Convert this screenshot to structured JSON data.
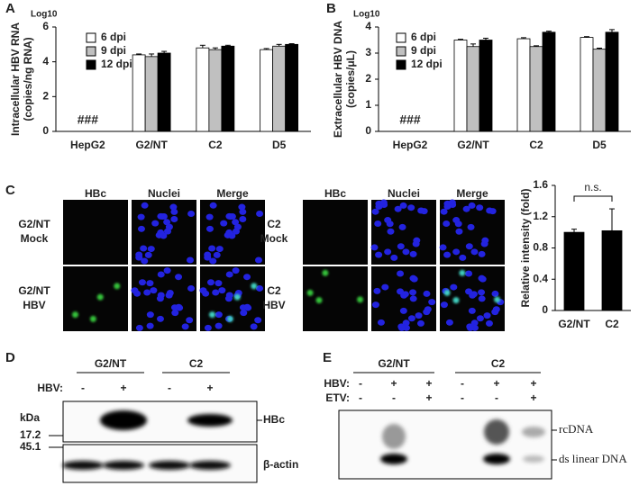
{
  "panel_labels": [
    "A",
    "B",
    "C",
    "D",
    "E"
  ],
  "chart_data": [
    {
      "type": "bar",
      "axis_note": "Log10",
      "y_label": [
        "Intracellular HBV RNA",
        "(copies/ng RNA)"
      ],
      "categories": [
        "HepG2",
        "G2/NT",
        "C2",
        "D5"
      ],
      "series": [
        {
          "name": "6 dpi",
          "color": "#ffffff",
          "values": [
            null,
            4.4,
            4.8,
            4.7
          ],
          "errors": [
            null,
            0.05,
            0.15,
            0.06
          ]
        },
        {
          "name": "9 dpi",
          "color": "#c0c0c0",
          "values": [
            null,
            4.3,
            4.7,
            4.9
          ],
          "errors": [
            null,
            0.15,
            0.1,
            0.1
          ]
        },
        {
          "name": "12 dpi",
          "color": "#000000",
          "values": [
            null,
            4.5,
            4.9,
            5.0
          ],
          "errors": [
            null,
            0.1,
            0.05,
            0.04
          ]
        }
      ],
      "annotation": "###",
      "legend": "upper left",
      "ylim": [
        0,
        6
      ],
      "yticks": [
        0,
        2,
        4,
        6
      ]
    },
    {
      "type": "bar",
      "axis_note": "Log10",
      "y_label": [
        "Extracellular HBV DNA",
        "(copies/μL)"
      ],
      "categories": [
        "HepG2",
        "G2/NT",
        "C2",
        "D5"
      ],
      "series": [
        {
          "name": "6 dpi",
          "color": "#ffffff",
          "values": [
            null,
            3.5,
            3.55,
            3.6
          ],
          "errors": [
            null,
            0.03,
            0.04,
            0.03
          ]
        },
        {
          "name": "9 dpi",
          "color": "#c0c0c0",
          "values": [
            null,
            3.25,
            3.25,
            3.15
          ],
          "errors": [
            null,
            0.1,
            0.03,
            0.04
          ]
        },
        {
          "name": "12 dpi",
          "color": "#000000",
          "values": [
            null,
            3.5,
            3.8,
            3.8
          ],
          "errors": [
            null,
            0.07,
            0.04,
            0.1
          ]
        }
      ],
      "annotation": "###",
      "legend": "upper left",
      "ylim": [
        0,
        4
      ],
      "yticks": [
        0,
        1,
        2,
        3,
        4
      ]
    },
    {
      "type": "bar",
      "y_label": [
        "Relative intensity (fold)"
      ],
      "categories": [
        "G2/NT",
        "C2"
      ],
      "series": [
        {
          "color": "#000000",
          "values": [
            1,
            1.02
          ],
          "errors": [
            0.04,
            0.28
          ]
        }
      ],
      "annotation": "n.s.",
      "bracket": true,
      "ylim": [
        0,
        1.6
      ],
      "yticks": [
        0,
        0.4,
        0.8,
        1.2,
        1.6
      ]
    }
  ],
  "microscopy": [
    {
      "columns": [
        "HBc",
        "Nuclei",
        "Merge"
      ],
      "rows": [
        [
          "G2/NT",
          "Mock"
        ],
        [
          "G2/NT",
          "HBV"
        ]
      ]
    },
    {
      "columns": [
        "HBc",
        "Nuclei",
        "Merge"
      ],
      "rows": [
        [
          "C2",
          "Mock"
        ],
        [
          "C2",
          "HBV"
        ]
      ]
    }
  ],
  "western_blot": {
    "groups": [
      "G2/NT",
      "C2"
    ],
    "treatment_label": "HBV:",
    "signs": [
      "-",
      "+",
      "-",
      "+"
    ],
    "kda_label": "kDa",
    "markers": [
      17.2,
      45.1
    ],
    "bands": [
      "HBc",
      "β-actin"
    ]
  },
  "southern_blot": {
    "groups": [
      "G2/NT",
      "C2"
    ],
    "treatments": [
      {
        "label": "HBV:",
        "signs": [
          "-",
          "+",
          "+",
          "-",
          "+",
          "+"
        ]
      },
      {
        "label": "ETV:",
        "signs": [
          "-",
          "-",
          "+",
          "-",
          "-",
          "+"
        ]
      }
    ],
    "bands": [
      "rcDNA",
      "ds linear DNA"
    ]
  }
}
